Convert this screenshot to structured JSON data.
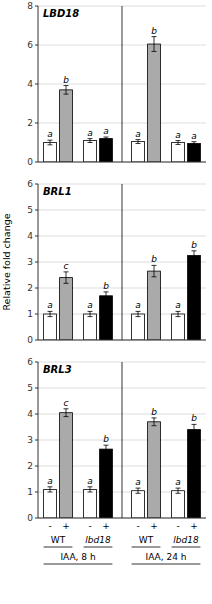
{
  "chart_data": [
    {
      "type": "bar",
      "title": "LBD18",
      "categories": [
        null,
        null,
        null,
        null,
        null,
        null,
        null,
        null
      ],
      "values": [
        1.0,
        3.7,
        1.1,
        1.2,
        1.05,
        6.05,
        1.0,
        0.95
      ],
      "errors": [
        0.12,
        0.22,
        0.1,
        0.08,
        0.1,
        0.38,
        0.1,
        0.09
      ],
      "annotations": [
        "a",
        "b",
        "a",
        "a",
        "a",
        "b",
        "a",
        "a"
      ],
      "colors": [
        "white",
        "#aaaaaa",
        "white",
        "black",
        "white",
        "#aaaaaa",
        "white",
        "black"
      ],
      "ylim": [
        0,
        8
      ],
      "yticks": [
        0,
        2,
        4,
        6,
        8
      ],
      "grid": true
    },
    {
      "type": "bar",
      "title": "BRL1",
      "ylabel": "Relative fold change",
      "categories": [
        null,
        null,
        null,
        null,
        null,
        null,
        null,
        null
      ],
      "values": [
        1.0,
        2.4,
        1.0,
        1.7,
        1.0,
        2.65,
        1.0,
        3.25
      ],
      "errors": [
        0.1,
        0.22,
        0.1,
        0.15,
        0.1,
        0.22,
        0.1,
        0.18
      ],
      "annotations": [
        "a",
        "c",
        "a",
        "b",
        "a",
        "b",
        "a",
        "b"
      ],
      "colors": [
        "white",
        "#aaaaaa",
        "white",
        "black",
        "white",
        "#aaaaaa",
        "white",
        "black"
      ],
      "ylim": [
        0,
        6
      ],
      "yticks": [
        0,
        1,
        2,
        3,
        4,
        5,
        6
      ],
      "grid": true
    },
    {
      "type": "bar",
      "title": "BRL3",
      "categories": [
        "-",
        "+",
        "-",
        "+",
        "-",
        "+",
        "-",
        "+"
      ],
      "group_labels": [
        "WT",
        "lbd18",
        "WT",
        "lbd18"
      ],
      "supergroup_labels": [
        "IAA,  8 h",
        "IAA,  24 h"
      ],
      "values": [
        1.1,
        4.05,
        1.1,
        2.65,
        1.05,
        3.7,
        1.05,
        3.4
      ],
      "errors": [
        0.1,
        0.15,
        0.1,
        0.15,
        0.1,
        0.15,
        0.1,
        0.2
      ],
      "annotations": [
        "a",
        "c",
        "a",
        "b",
        "a",
        "b",
        "a",
        "b"
      ],
      "colors": [
        "white",
        "#aaaaaa",
        "white",
        "black",
        "white",
        "#aaaaaa",
        "white",
        "black"
      ],
      "ylim": [
        0,
        6
      ],
      "yticks": [
        0,
        1,
        2,
        3,
        4,
        5,
        6
      ],
      "grid": true
    }
  ]
}
